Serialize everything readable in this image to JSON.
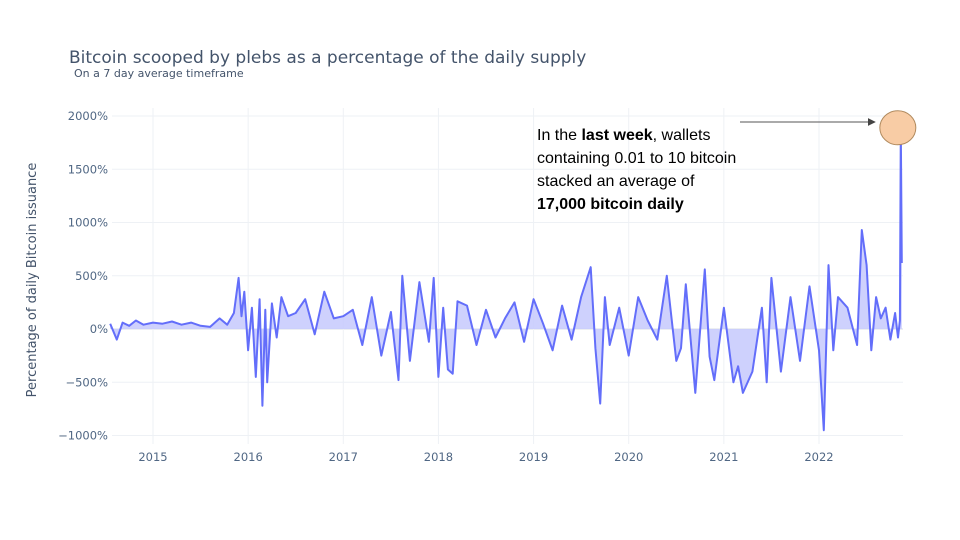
{
  "chart_data": {
    "type": "area",
    "title": "Bitcoin scooped by plebs as a percentage of the daily supply",
    "subtitle": "On a 7 day average timeframe",
    "xlabel": "",
    "ylabel": "Percentage of daily Bitcoin issuance",
    "x_tick_labels": [
      "2015",
      "2016",
      "2017",
      "2018",
      "2019",
      "2020",
      "2021",
      "2022"
    ],
    "y_tick_labels": [
      "2000%",
      "1500%",
      "1000%",
      "500%",
      "0%",
      "−500%",
      "−1000%"
    ],
    "y_tick_values": [
      2000,
      1500,
      1000,
      500,
      0,
      -500,
      -1000
    ],
    "xlim": [
      2014.53,
      2022.88
    ],
    "ylim": [
      -1050,
      2100
    ],
    "grid": true,
    "series": [
      {
        "color": "#636efa",
        "fill_color": "#c5c9fd",
        "x": [
          2014.55,
          2014.62,
          2014.68,
          2014.75,
          2014.82,
          2014.9,
          2015.0,
          2015.1,
          2015.2,
          2015.3,
          2015.4,
          2015.5,
          2015.6,
          2015.7,
          2015.78,
          2015.85,
          2015.9,
          2015.93,
          2015.96,
          2016.0,
          2016.04,
          2016.08,
          2016.12,
          2016.15,
          2016.18,
          2016.2,
          2016.25,
          2016.3,
          2016.35,
          2016.42,
          2016.5,
          2016.6,
          2016.7,
          2016.8,
          2016.9,
          2017.0,
          2017.1,
          2017.2,
          2017.3,
          2017.4,
          2017.5,
          2017.58,
          2017.62,
          2017.7,
          2017.8,
          2017.9,
          2017.95,
          2018.0,
          2018.05,
          2018.1,
          2018.15,
          2018.2,
          2018.3,
          2018.4,
          2018.5,
          2018.6,
          2018.7,
          2018.8,
          2018.9,
          2019.0,
          2019.1,
          2019.2,
          2019.3,
          2019.4,
          2019.5,
          2019.6,
          2019.65,
          2019.7,
          2019.75,
          2019.8,
          2019.9,
          2020.0,
          2020.1,
          2020.2,
          2020.3,
          2020.4,
          2020.5,
          2020.55,
          2020.6,
          2020.7,
          2020.8,
          2020.85,
          2020.9,
          2021.0,
          2021.1,
          2021.15,
          2021.2,
          2021.3,
          2021.4,
          2021.45,
          2021.5,
          2021.6,
          2021.7,
          2021.8,
          2021.9,
          2022.0,
          2022.05,
          2022.1,
          2022.15,
          2022.2,
          2022.3,
          2022.4,
          2022.45,
          2022.5,
          2022.55,
          2022.6,
          2022.65,
          2022.7,
          2022.75,
          2022.8,
          2022.83,
          2022.85,
          2022.86,
          2022.87
        ],
        "values": [
          50,
          -100,
          60,
          30,
          80,
          40,
          60,
          50,
          70,
          40,
          60,
          30,
          20,
          100,
          40,
          150,
          480,
          120,
          350,
          -200,
          200,
          -450,
          280,
          -720,
          180,
          -500,
          240,
          -80,
          300,
          120,
          150,
          280,
          -50,
          350,
          100,
          120,
          180,
          -150,
          300,
          -250,
          160,
          -480,
          500,
          -300,
          440,
          -120,
          480,
          -450,
          200,
          -380,
          -420,
          260,
          220,
          -150,
          180,
          -80,
          100,
          250,
          -120,
          280,
          50,
          -200,
          220,
          -100,
          300,
          580,
          -180,
          -700,
          300,
          -150,
          200,
          -250,
          300,
          80,
          -100,
          500,
          -300,
          -180,
          420,
          -600,
          560,
          -260,
          -480,
          200,
          -500,
          -350,
          -600,
          -400,
          200,
          -500,
          480,
          -400,
          300,
          -300,
          400,
          -200,
          -950,
          600,
          -200,
          300,
          200,
          -150,
          930,
          600,
          -200,
          300,
          100,
          200,
          -100,
          150,
          -80,
          80,
          1880,
          620
        ],
        "peak_marker": {
          "x": 2022.86,
          "y": 1880,
          "fill": "#f8cca5",
          "stroke": "#b08a5e"
        }
      }
    ]
  },
  "annotation": {
    "line1_pre": "In the ",
    "line1_bold": "last week",
    "line1_post": ", wallets",
    "line2": "containing 0.01 to 10 bitcoin",
    "line3": "stacked an average of",
    "line4_bold": "17,000 bitcoin daily"
  }
}
